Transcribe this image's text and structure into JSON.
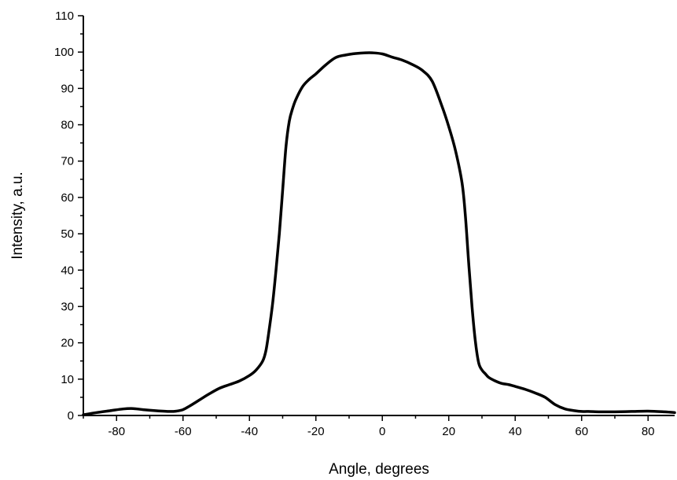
{
  "chart_data": {
    "type": "line",
    "title": "",
    "xlabel": "Angle, degrees",
    "ylabel": "Intensity, a.u.",
    "xlim": [
      -90,
      88
    ],
    "ylim": [
      0,
      110
    ],
    "x_ticks": [
      -80,
      -60,
      -40,
      -20,
      0,
      20,
      40,
      60,
      80
    ],
    "y_ticks": [
      0,
      10,
      20,
      30,
      40,
      50,
      60,
      70,
      80,
      90,
      100,
      110
    ],
    "grid": false,
    "legend": "none",
    "line_color": "#000000",
    "series": [
      {
        "x": [
          -90,
          -86,
          -82,
          -78,
          -75,
          -72,
          -68,
          -64,
          -62,
          -60,
          -58,
          -55,
          -52,
          -49,
          -46,
          -43,
          -40,
          -38,
          -36,
          -35,
          -34,
          -33,
          -32,
          -31,
          -30,
          -29,
          -28,
          -27,
          -26,
          -24,
          -22,
          -20,
          -17,
          -14,
          -11,
          -8,
          -5,
          -3,
          0,
          3,
          6,
          9,
          12,
          15,
          18,
          20,
          22,
          24,
          25,
          26,
          27,
          28,
          29,
          30,
          31,
          32,
          34,
          36,
          38,
          40,
          43,
          46,
          49,
          52,
          55,
          58,
          60,
          62,
          66,
          70,
          75,
          80,
          85,
          88
        ],
        "y": [
          0.2,
          0.8,
          1.3,
          1.8,
          1.9,
          1.6,
          1.3,
          1.1,
          1.2,
          1.6,
          2.6,
          4.3,
          6.0,
          7.5,
          8.5,
          9.5,
          11.0,
          12.5,
          15.0,
          18.0,
          24.0,
          31.0,
          40.0,
          50.0,
          62.0,
          74.0,
          81.0,
          84.5,
          87.0,
          90.5,
          92.5,
          94.0,
          96.5,
          98.5,
          99.2,
          99.6,
          99.8,
          99.8,
          99.5,
          98.6,
          97.8,
          96.6,
          95.0,
          92.0,
          85.0,
          79.5,
          73.0,
          64.0,
          55.0,
          42.0,
          30.0,
          20.5,
          14.5,
          12.5,
          11.5,
          10.5,
          9.5,
          8.8,
          8.5,
          8.0,
          7.2,
          6.2,
          5.0,
          3.0,
          1.8,
          1.3,
          1.1,
          1.1,
          1.0,
          1.0,
          1.1,
          1.2,
          1.0,
          0.8
        ]
      }
    ]
  }
}
